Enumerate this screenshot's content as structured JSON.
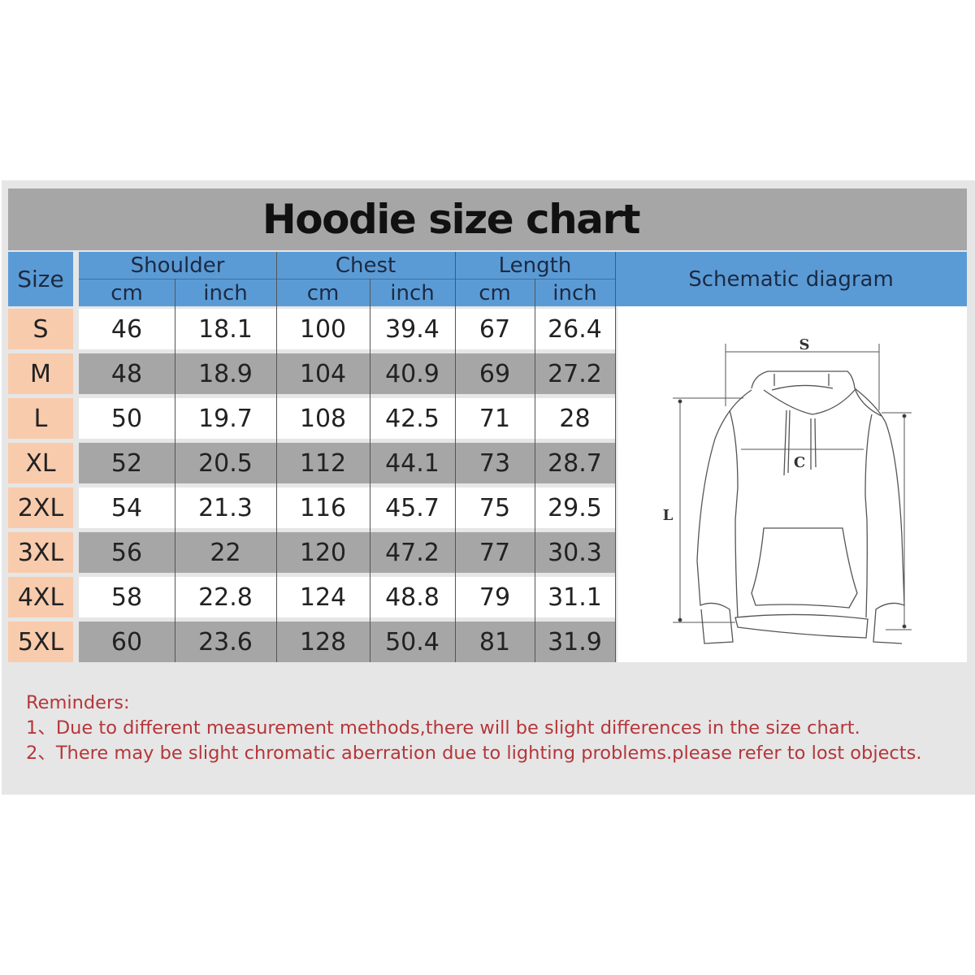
{
  "title": "Hoodie size chart",
  "header": {
    "size": "Size",
    "groups": [
      "Shoulder",
      "Chest",
      "Length"
    ],
    "units": [
      "cm",
      "inch",
      "cm",
      "inch",
      "cm",
      "inch"
    ],
    "schematic": "Schematic diagram"
  },
  "rows": [
    {
      "size": "S",
      "values": [
        "46",
        "18.1",
        "100",
        "39.4",
        "67",
        "26.4"
      ]
    },
    {
      "size": "M",
      "values": [
        "48",
        "18.9",
        "104",
        "40.9",
        "69",
        "27.2"
      ]
    },
    {
      "size": "L",
      "values": [
        "50",
        "19.7",
        "108",
        "42.5",
        "71",
        "28"
      ]
    },
    {
      "size": "XL",
      "values": [
        "52",
        "20.5",
        "112",
        "44.1",
        "73",
        "28.7"
      ]
    },
    {
      "size": "2XL",
      "values": [
        "54",
        "21.3",
        "116",
        "45.7",
        "75",
        "29.5"
      ]
    },
    {
      "size": "3XL",
      "values": [
        "56",
        "22",
        "120",
        "47.2",
        "77",
        "30.3"
      ]
    },
    {
      "size": "4XL",
      "values": [
        "58",
        "22.8",
        "124",
        "48.8",
        "79",
        "31.1"
      ]
    },
    {
      "size": "5XL",
      "values": [
        "60",
        "23.6",
        "128",
        "50.4",
        "81",
        "31.9"
      ]
    }
  ],
  "diagram": {
    "shoulder_label": "S",
    "chest_label": "C",
    "length_label": "L"
  },
  "reminders": {
    "heading": "Reminders:",
    "items": [
      "1、Due to different measurement methods,there will be slight differences in the size chart.",
      "2、There may be slight chromatic aberration due to lighting problems.please refer to lost objects."
    ]
  },
  "colors": {
    "header_blue": "#5b9bd5",
    "size_peach": "#f8cbad",
    "band_gray": "#a6a6a6",
    "reminder_red": "#b5363a"
  }
}
